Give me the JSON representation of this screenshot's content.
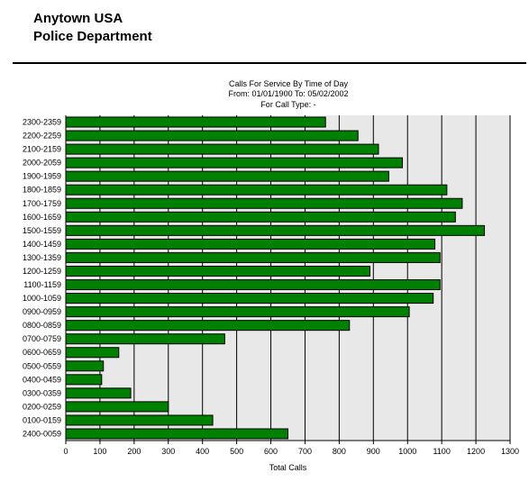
{
  "header": {
    "org_line1": "Anytown USA",
    "org_line2": "Police Department"
  },
  "chart_data": {
    "type": "bar",
    "orientation": "horizontal",
    "title": "Calls For Service By Time of Day",
    "subtitle": "From: 01/01/1900   To: 05/02/2002",
    "filter": "For Call Type:  -",
    "xlabel": "Total Calls",
    "ylabel": "",
    "xlim": [
      0,
      1300
    ],
    "xticks": [
      0,
      100,
      200,
      300,
      400,
      500,
      600,
      700,
      800,
      900,
      1000,
      1100,
      1200,
      1300
    ],
    "grid": true,
    "colors": {
      "bar": "#008000",
      "bar_edge": "#000000",
      "plot_bg": "#e8e8e8"
    },
    "categories": [
      "2300-2359",
      "2200-2259",
      "2100-2159",
      "2000-2059",
      "1900-1959",
      "1800-1859",
      "1700-1759",
      "1600-1659",
      "1500-1559",
      "1400-1459",
      "1300-1359",
      "1200-1259",
      "1100-1159",
      "1000-1059",
      "0900-0959",
      "0800-0859",
      "0700-0759",
      "0600-0659",
      "0500-0559",
      "0400-0459",
      "0300-0359",
      "0200-0259",
      "0100-0159",
      "2400-0059"
    ],
    "values": [
      760,
      855,
      915,
      985,
      945,
      1115,
      1160,
      1140,
      1225,
      1080,
      1095,
      890,
      1095,
      1075,
      1005,
      830,
      465,
      155,
      110,
      105,
      190,
      300,
      430,
      650
    ]
  }
}
